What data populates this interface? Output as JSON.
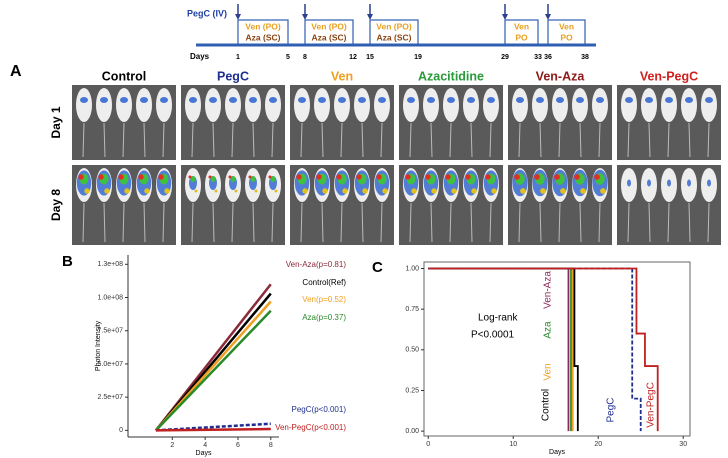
{
  "timeline": {
    "dose_label": "PegC (IV)",
    "days_label": "Days",
    "blocks": [
      {
        "start": 1,
        "end": 5,
        "drugs": [
          "Ven (PO)",
          "Aza (SC)"
        ]
      },
      {
        "start": 8,
        "end": 12,
        "drugs": [
          "Ven (PO)",
          "Aza (SC)"
        ]
      },
      {
        "start": 15,
        "end": 19,
        "drugs": [
          "Ven (PO)",
          "Aza (SC)"
        ]
      },
      {
        "start": 29,
        "end": 33,
        "drugs": [
          "Ven",
          "PO"
        ]
      },
      {
        "start": 36,
        "end": 38,
        "drugs": [
          "Ven",
          "PO"
        ]
      }
    ]
  },
  "panel_a": {
    "letter": "A",
    "rows": [
      "Day 1",
      "Day 8"
    ],
    "groups": [
      {
        "name": "Control",
        "color": "#000000"
      },
      {
        "name": "PegC",
        "color": "#1f2f8f"
      },
      {
        "name": "Ven",
        "color": "#f0a020"
      },
      {
        "name": "Azacitidine",
        "color": "#2a9a3a"
      },
      {
        "name": "Ven-Aza",
        "color": "#8b1a1a"
      },
      {
        "name": "Ven-PegC",
        "color": "#d02020"
      }
    ]
  },
  "chart_data": [
    {
      "type": "line",
      "panel": "B",
      "x_label": "Days",
      "y_label": "Photon Intensity",
      "x": [
        1,
        8
      ],
      "xlim": [
        -0.7,
        8.5
      ],
      "xticks": [
        2,
        4,
        6,
        8
      ],
      "ylim": [
        -5000000,
        132000000
      ],
      "yticks": [
        0,
        {
          "value": 25000000,
          "label": "2.5e+07"
        },
        {
          "value": 50000000,
          "label": "5.0e+07"
        },
        {
          "value": 75000000,
          "label": "7.5e+07"
        },
        {
          "value": 100000000,
          "label": "1.0e+08"
        },
        {
          "value": 125000000,
          "label": "1.3e+08"
        }
      ],
      "series": [
        {
          "name": "Ven-Aza(p=0.81)",
          "color": "#8b2a3a",
          "values": [
            0,
            110000000
          ]
        },
        {
          "name": "Control(Ref)",
          "color": "#000000",
          "values": [
            0,
            103000000
          ]
        },
        {
          "name": "Ven(p=0.52)",
          "color": "#f0a020",
          "values": [
            0,
            97000000
          ]
        },
        {
          "name": "Aza(p=0.37)",
          "color": "#2a8a2a",
          "values": [
            0,
            90000000
          ]
        },
        {
          "name": "PegC(p<0.001)",
          "color": "#1f2f8f",
          "dashed": true,
          "values": [
            0,
            5000000
          ]
        },
        {
          "name": "Ven-PegC(p<0.001)",
          "color": "#c02020",
          "values": [
            0,
            1000000
          ]
        }
      ]
    },
    {
      "type": "step",
      "panel": "C",
      "x_label": "Days",
      "annotations": [
        "Log-rank",
        "P<0.0001"
      ],
      "xlim": [
        -0.5,
        30.8
      ],
      "xticks": [
        0,
        10,
        20,
        30
      ],
      "ylim": [
        -0.03,
        1.04
      ],
      "yticks": [
        {
          "value": 0,
          "label": "0.00"
        },
        {
          "value": 0.25,
          "label": "0.25"
        },
        {
          "value": 0.5,
          "label": "0.50"
        },
        {
          "value": 0.75,
          "label": "0.75"
        },
        {
          "value": 1,
          "label": "1.00"
        }
      ],
      "series": [
        {
          "name": "Ven-Aza",
          "color": "#8b2a5a",
          "x": [
            0,
            16.5,
            16.5
          ],
          "values": [
            1,
            1,
            0
          ]
        },
        {
          "name": "Aza",
          "color": "#2a8a2a",
          "x": [
            0,
            16.8,
            16.8
          ],
          "values": [
            1,
            1,
            0
          ]
        },
        {
          "name": "Ven",
          "color": "#f0a020",
          "x": [
            0,
            17,
            17
          ],
          "values": [
            1,
            1,
            0
          ]
        },
        {
          "name": "Control",
          "color": "#000000",
          "x": [
            0,
            17.2,
            17.2,
            17.6,
            17.6
          ],
          "values": [
            1,
            1,
            0.4,
            0.4,
            0
          ]
        },
        {
          "name": "PegC",
          "color": "#1f2f8f",
          "dashed": true,
          "x": [
            0,
            24,
            24,
            25,
            25
          ],
          "values": [
            1,
            1,
            0.2,
            0.2,
            0
          ]
        },
        {
          "name": "Ven-PegC",
          "color": "#c02020",
          "x": [
            0,
            24.5,
            24.5,
            25.5,
            25.5,
            27,
            27
          ],
          "values": [
            1,
            1,
            0.6,
            0.6,
            0.4,
            0.4,
            0
          ]
        }
      ]
    }
  ]
}
